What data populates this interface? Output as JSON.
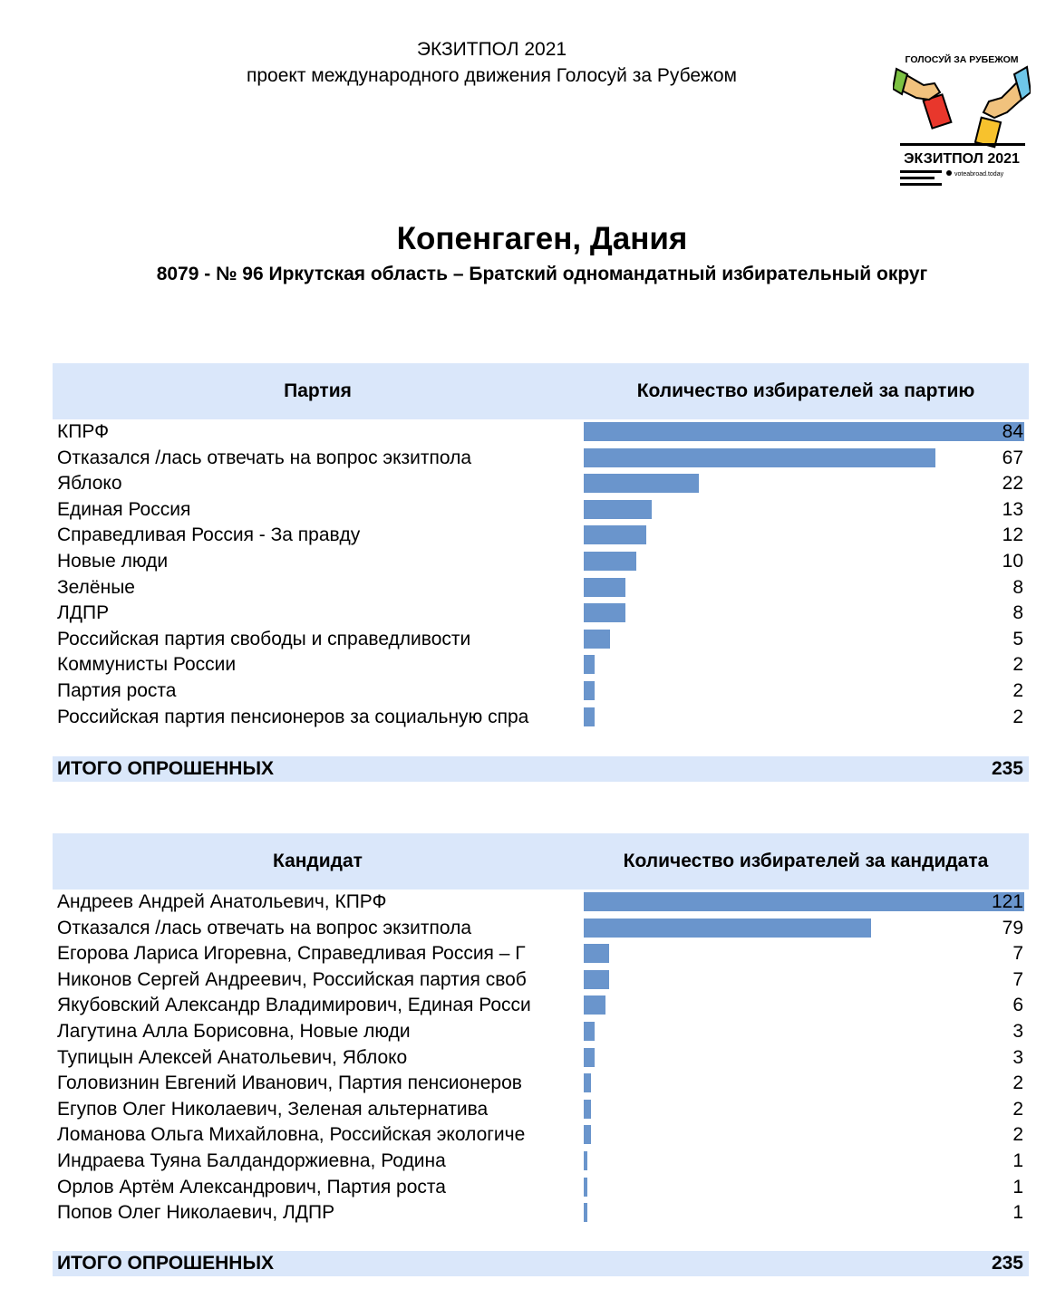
{
  "header": {
    "line1": "ЭКЗИТПОЛ 2021",
    "line2": "проект международного движения Голосуй за Рубежом"
  },
  "logo": {
    "top_text": "ГОЛОСУЙ ЗА РУБЕЖОМ",
    "main_text": "ЭКЗИТПОЛ 2021",
    "site_text": "voteabroad.today",
    "colors": {
      "skin": "#f1c27d",
      "red": "#e8372c",
      "yellow": "#f7c22d",
      "cyan": "#6ec6e8",
      "green": "#7cc142"
    }
  },
  "title": {
    "city": "Копенгаген, Дания",
    "district": "8079 - № 96 Иркутская область – Братский одномандатный избирательный округ"
  },
  "colors": {
    "header_bg": "#dae7fa",
    "bar": "#6a95cc"
  },
  "party_table": {
    "col1": "Партия",
    "col2": "Количество избирателей за партию",
    "total_label": "ИТОГО ОПРОШЕННЫХ",
    "total_value": "235"
  },
  "candidate_table": {
    "col1": "Кандидат",
    "col2": "Количество избирателей за кандидата",
    "total_label": "ИТОГО ОПРОШЕННЫХ",
    "total_value": "235"
  },
  "chart_data": [
    {
      "type": "bar",
      "orientation": "horizontal",
      "categories": [
        "КПРФ",
        "Отказался /лась отвечать на вопрос экзитпола",
        "Яблоко",
        "Единая Россия",
        "Справедливая Россия - За правду",
        "Новые люди",
        "Зелёные",
        "ЛДПР",
        "Российская партия свободы и справедливости",
        "Коммунисты России",
        "Партия роста",
        "Российская партия пенсионеров за социальную спра"
      ],
      "values": [
        84,
        67,
        22,
        13,
        12,
        10,
        8,
        8,
        5,
        2,
        2,
        2
      ]
    },
    {
      "type": "bar",
      "orientation": "horizontal",
      "categories": [
        "Андреев Андрей Анатольевич, КПРФ",
        "Отказался /лась отвечать на вопрос экзитпола",
        "Егорова Лариса Игоревна, Справедливая Россия – Г",
        "Никонов Сергей Андреевич, Российская партия своб",
        "Якубовский Александр Владимирович, Единая Росси",
        "Лагутина Алла Борисовна, Новые люди",
        "Тупицын Алексей Анатольевич, Яблоко",
        "Головизнин Евгений Иванович, Партия пенсионеров",
        "Егупов Олег Николаевич, Зеленая альтернатива",
        "Ломанова Ольга Михайловна, Российская экологиче",
        "Индраева Туяна Балдандоржиевна, Родина",
        "Орлов Артём Александрович, Партия роста",
        "Попов Олег Николаевич, ЛДПР"
      ],
      "values": [
        121,
        79,
        7,
        7,
        6,
        3,
        3,
        2,
        2,
        2,
        1,
        1,
        1
      ]
    }
  ]
}
